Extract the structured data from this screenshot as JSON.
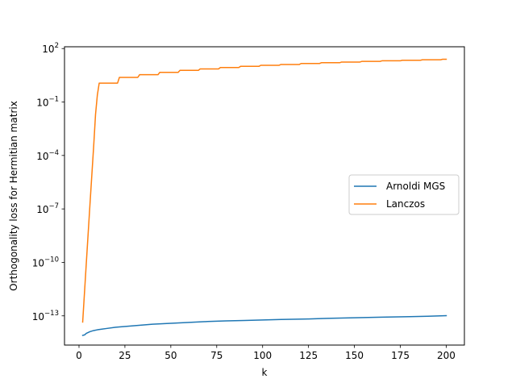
{
  "chart_data": {
    "type": "line",
    "title": "",
    "xlabel": "k",
    "ylabel": "Orthogonality loss for Hermitian matrix",
    "xscale": "linear",
    "yscale": "log",
    "xlim": [
      -7.9,
      209.9
    ],
    "ylim_exp": [
      -14.64,
      2.1
    ],
    "xticks": [
      0,
      25,
      50,
      75,
      100,
      125,
      150,
      175,
      200
    ],
    "xtick_labels": [
      "0",
      "25",
      "50",
      "75",
      "100",
      "125",
      "150",
      "175",
      "200"
    ],
    "yticks_exp": [
      -13,
      -10,
      -7,
      -4,
      -1,
      2
    ],
    "ytick_labels": [
      {
        "base": "10",
        "exp": "−13"
      },
      {
        "base": "10",
        "exp": "−10"
      },
      {
        "base": "10",
        "exp": "−7"
      },
      {
        "base": "10",
        "exp": "−4"
      },
      {
        "base": "10",
        "exp": "−1"
      },
      {
        "base": "10",
        "exp": "2"
      }
    ],
    "grid": false,
    "legend_position": "center-right",
    "series": [
      {
        "name": "Arnoldi MGS",
        "color": "#1f77b4",
        "points": [
          [
            2,
            8e-15
          ],
          [
            3,
            8.5e-15
          ],
          [
            4,
            1.05e-14
          ],
          [
            6,
            1.3e-14
          ],
          [
            8,
            1.5e-14
          ],
          [
            10,
            1.65e-14
          ],
          [
            15,
            1.95e-14
          ],
          [
            20,
            2.3e-14
          ],
          [
            30,
            2.8e-14
          ],
          [
            40,
            3.4e-14
          ],
          [
            50,
            3.8e-14
          ],
          [
            60,
            4.3e-14
          ],
          [
            70,
            4.8e-14
          ],
          [
            80,
            5.2e-14
          ],
          [
            90,
            5.5e-14
          ],
          [
            100,
            5.9e-14
          ],
          [
            110,
            6.3e-14
          ],
          [
            125,
            6.7e-14
          ],
          [
            135,
            7.2e-14
          ],
          [
            150,
            7.8e-14
          ],
          [
            165,
            8.4e-14
          ],
          [
            180,
            9e-14
          ],
          [
            190,
            9.5e-14
          ],
          [
            200,
            1.02e-13
          ]
        ]
      },
      {
        "name": "Lanczos",
        "color": "#ff7f0e",
        "points": [
          [
            2,
            4.5e-14
          ],
          [
            4,
            1e-10
          ],
          [
            6,
            2e-07
          ],
          [
            8,
            0.00035
          ],
          [
            9,
            0.02
          ],
          [
            10,
            0.25
          ],
          [
            11,
            1.15
          ],
          [
            21,
            1.15
          ],
          [
            22,
            2.4
          ],
          [
            32,
            2.4
          ],
          [
            33,
            3.4
          ],
          [
            43,
            3.4
          ],
          [
            44,
            4.6
          ],
          [
            54,
            4.6
          ],
          [
            55,
            6.0
          ],
          [
            65,
            6.0
          ],
          [
            66,
            7.2
          ],
          [
            76,
            7.2
          ],
          [
            77,
            8.6
          ],
          [
            87,
            8.6
          ],
          [
            88,
            10.0
          ],
          [
            98,
            10.0
          ],
          [
            99,
            11.5
          ],
          [
            109,
            11.5
          ],
          [
            110,
            12.8
          ],
          [
            120,
            12.8
          ],
          [
            121,
            14.5
          ],
          [
            131,
            14.5
          ],
          [
            132,
            16.0
          ],
          [
            142,
            16.0
          ],
          [
            143,
            17.5
          ],
          [
            153,
            17.5
          ],
          [
            154,
            19.0
          ],
          [
            164,
            19.0
          ],
          [
            165,
            20.5
          ],
          [
            175,
            20.5
          ],
          [
            176,
            22.0
          ],
          [
            186,
            22.0
          ],
          [
            187,
            23.5
          ],
          [
            197,
            23.5
          ],
          [
            198,
            25.0
          ],
          [
            200,
            25.0
          ]
        ]
      }
    ]
  }
}
